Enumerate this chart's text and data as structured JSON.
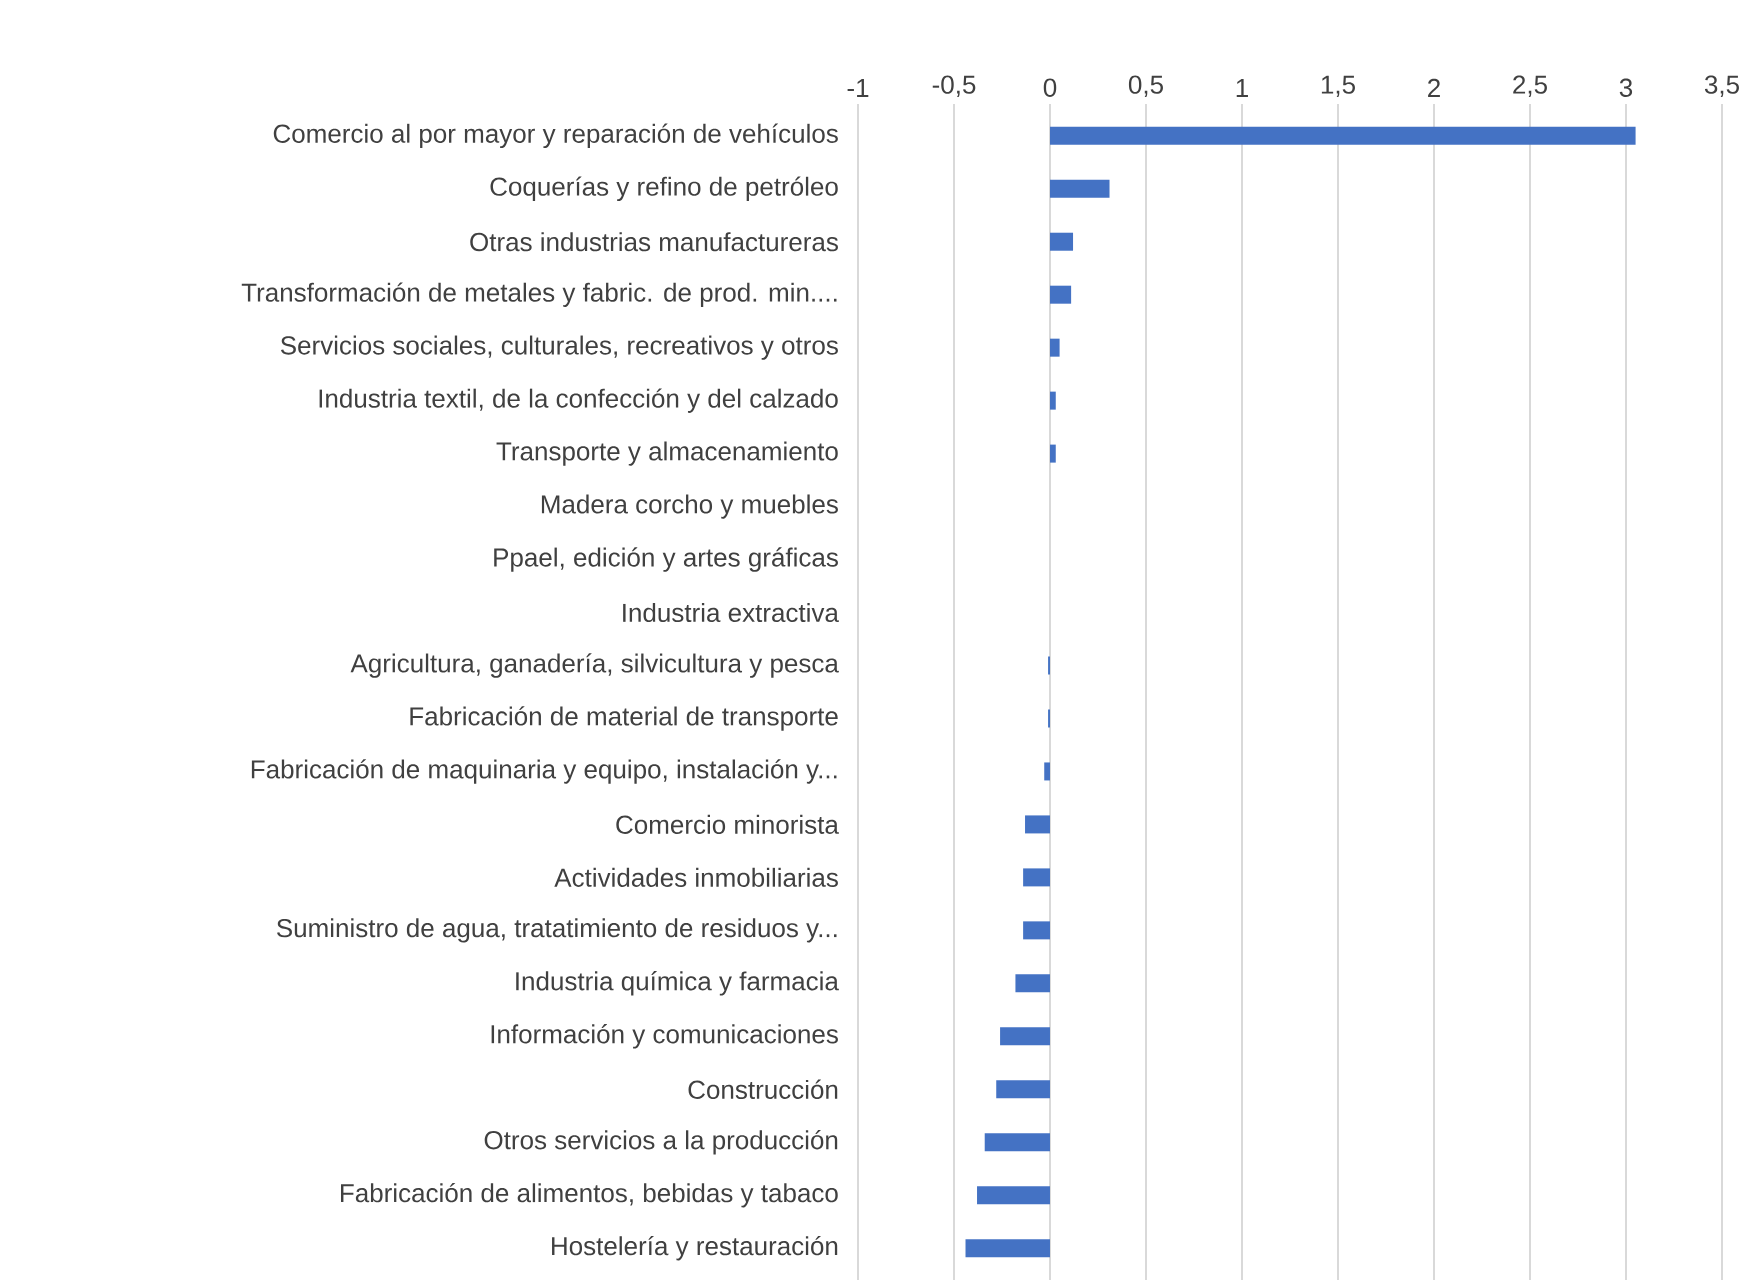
{
  "chart_data": {
    "type": "bar",
    "orientation": "horizontal",
    "categories": [
      "Comercio al por mayor y reparación de vehículos",
      "Coquerías y refino de petróleo",
      "Otras industrias manufactureras",
      "Transformación de metales y fabric. de prod. min....",
      "Servicios sociales, culturales, recreativos y otros",
      "Industria textil, de la confección y del calzado",
      "Transporte y almacenamiento",
      "Madera corcho y muebles",
      "Ppael, edición y artes gráficas",
      "Industria extractiva",
      "Agricultura, ganadería, silvicultura y pesca",
      "Fabricación de material de transporte",
      "Fabricación de maquinaria y equipo, instalación y...",
      "Comercio minorista",
      "Actividades inmobiliarias",
      "Suministro de agua, tratatimiento de residuos y...",
      "Industria química y farmacia",
      "Información y comunicaciones",
      "Construcción",
      "Otros servicios a la producción",
      "Fabricación de alimentos, bebidas y tabaco",
      "Hostelería y restauración"
    ],
    "values": [
      3.05,
      0.31,
      0.12,
      0.11,
      0.05,
      0.03,
      0.03,
      0,
      0,
      0,
      -0.01,
      -0.01,
      -0.03,
      -0.13,
      -0.14,
      -0.14,
      -0.18,
      -0.26,
      -0.28,
      -0.34,
      -0.38,
      -0.44
    ],
    "color": "#4472c4",
    "xlim": [
      -1,
      3.5
    ],
    "xticks": [
      {
        "value": -1,
        "label": "-1"
      },
      {
        "value": -0.5,
        "label": "-0,5"
      },
      {
        "value": 0,
        "label": "0"
      },
      {
        "value": 0.5,
        "label": "0,5"
      },
      {
        "value": 1,
        "label": "1"
      },
      {
        "value": 1.5,
        "label": "1,5"
      },
      {
        "value": 2,
        "label": "2"
      },
      {
        "value": 2.5,
        "label": "2,5"
      },
      {
        "value": 3,
        "label": "3"
      },
      {
        "value": 3.5,
        "label": "3,5"
      }
    ],
    "grid": "x"
  }
}
